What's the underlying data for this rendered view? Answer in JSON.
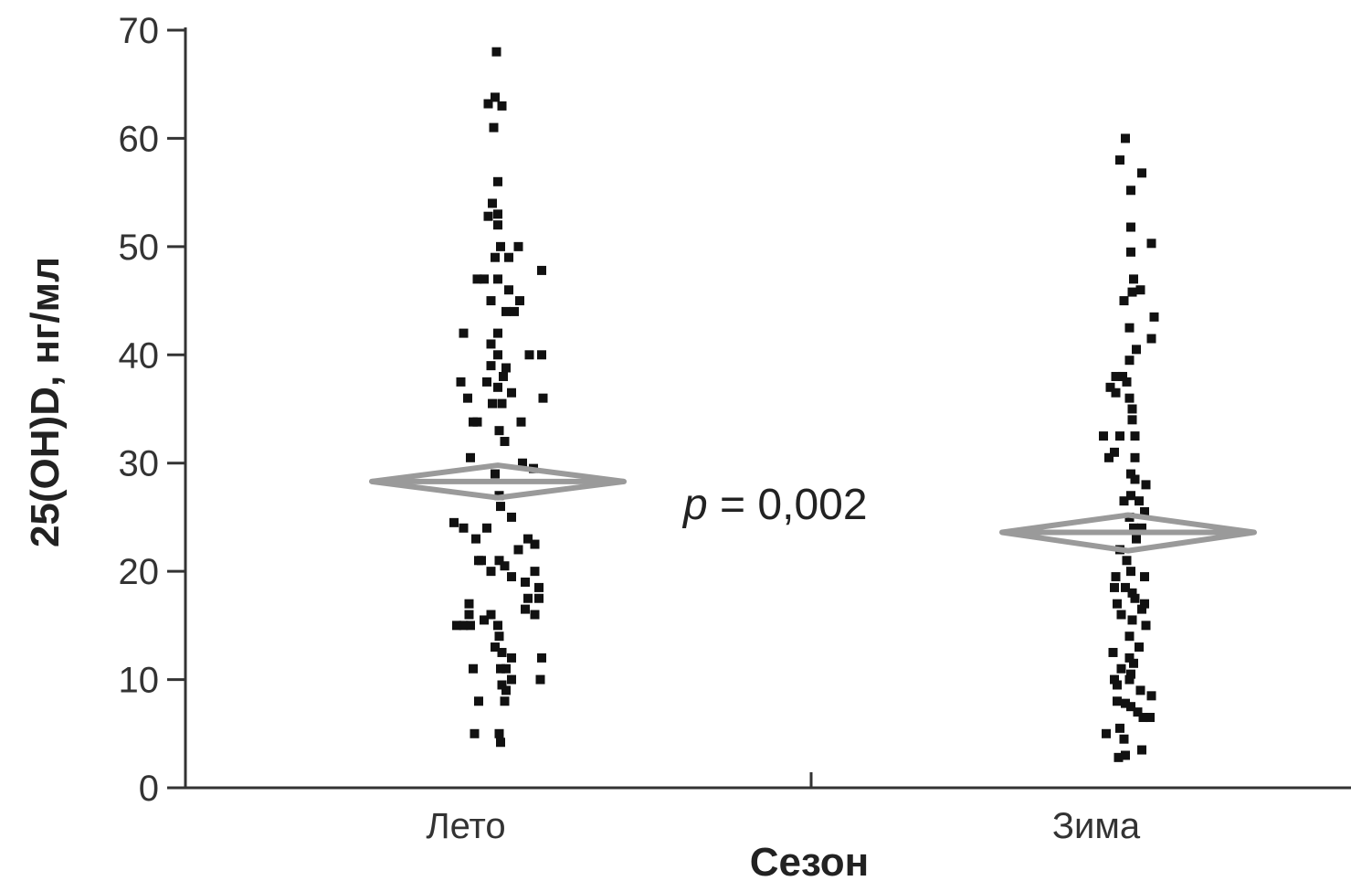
{
  "chart_data": {
    "type": "scatter",
    "xlabel": "Сезон",
    "ylabel": "25(OH)D, нг/мл",
    "categories": [
      "Лето",
      "Зима"
    ],
    "yticks": [
      "0",
      "10",
      "20",
      "30",
      "40",
      "50",
      "60",
      "70"
    ],
    "ylim": [
      0,
      70
    ],
    "grid": false,
    "annotation": {
      "prefix": "p",
      "text": " = 0,002"
    },
    "colors": {
      "points": "#111111",
      "diamond": "#9a9a9a",
      "axis": "#333333"
    },
    "summary": [
      {
        "category": "Лето",
        "mean": 28.3,
        "ci_low": 26.8,
        "ci_high": 29.8
      },
      {
        "category": "Зима",
        "mean": 23.6,
        "ci_low": 21.9,
        "ci_high": 25.2
      }
    ],
    "series": [
      {
        "category": "Лето",
        "points": [
          [
            -0.01,
            68
          ],
          [
            -0.07,
            63.2
          ],
          [
            -0.02,
            63.8
          ],
          [
            0.03,
            63
          ],
          [
            -0.03,
            61
          ],
          [
            0,
            56
          ],
          [
            -0.04,
            54
          ],
          [
            0,
            53
          ],
          [
            -0.07,
            52.8
          ],
          [
            0,
            52
          ],
          [
            0.02,
            50
          ],
          [
            0.15,
            50
          ],
          [
            -0.02,
            49
          ],
          [
            0.08,
            49
          ],
          [
            0.32,
            47.8
          ],
          [
            -0.15,
            47
          ],
          [
            -0.1,
            47
          ],
          [
            0,
            47
          ],
          [
            0.08,
            46
          ],
          [
            -0.05,
            45
          ],
          [
            0.16,
            45
          ],
          [
            0.12,
            44
          ],
          [
            0.06,
            44
          ],
          [
            0,
            42
          ],
          [
            -0.25,
            42
          ],
          [
            -0.05,
            41
          ],
          [
            0,
            40
          ],
          [
            0.23,
            40
          ],
          [
            0.32,
            40
          ],
          [
            -0.05,
            39
          ],
          [
            0.06,
            38.8
          ],
          [
            -0.27,
            37.5
          ],
          [
            0.04,
            38
          ],
          [
            -0.08,
            37.5
          ],
          [
            0,
            37
          ],
          [
            0.1,
            36.5
          ],
          [
            0.33,
            36
          ],
          [
            -0.22,
            36
          ],
          [
            -0.04,
            35.5
          ],
          [
            0.03,
            35.5
          ],
          [
            -0.15,
            33.8
          ],
          [
            -0.18,
            33.8
          ],
          [
            0.17,
            33.8
          ],
          [
            0.01,
            33
          ],
          [
            0.05,
            32
          ],
          [
            -0.2,
            30.5
          ],
          [
            0.18,
            30
          ],
          [
            0.26,
            29.5
          ],
          [
            -0.02,
            29
          ],
          [
            0.01,
            27
          ],
          [
            0.02,
            26
          ],
          [
            0.1,
            25
          ],
          [
            -0.32,
            24.5
          ],
          [
            -0.25,
            24
          ],
          [
            -0.08,
            24
          ],
          [
            -0.16,
            23
          ],
          [
            0.22,
            23
          ],
          [
            0.27,
            22.5
          ],
          [
            0.15,
            22
          ],
          [
            -0.12,
            21
          ],
          [
            -0.14,
            21
          ],
          [
            0.01,
            21
          ],
          [
            0.05,
            20.5
          ],
          [
            -0.05,
            20
          ],
          [
            0.27,
            20
          ],
          [
            0.1,
            19.5
          ],
          [
            0.2,
            19
          ],
          [
            0.3,
            18.5
          ],
          [
            0.3,
            17.5
          ],
          [
            0.22,
            17.5
          ],
          [
            -0.21,
            17
          ],
          [
            0.2,
            16.5
          ],
          [
            -0.05,
            16
          ],
          [
            0.27,
            16
          ],
          [
            -0.21,
            16
          ],
          [
            -0.1,
            15.5
          ],
          [
            -0.25,
            15
          ],
          [
            -0.3,
            15
          ],
          [
            -0.2,
            15
          ],
          [
            0,
            15
          ],
          [
            0.01,
            14
          ],
          [
            -0.02,
            13
          ],
          [
            0.03,
            12.5
          ],
          [
            0.1,
            12
          ],
          [
            0.32,
            12
          ],
          [
            -0.18,
            11
          ],
          [
            0.02,
            11
          ],
          [
            0.06,
            11
          ],
          [
            0.1,
            10
          ],
          [
            0.31,
            10
          ],
          [
            0.03,
            9.5
          ],
          [
            0.06,
            9
          ],
          [
            -0.14,
            8
          ],
          [
            0.05,
            8
          ],
          [
            -0.17,
            5
          ],
          [
            0.01,
            5
          ],
          [
            0.02,
            4.2
          ]
        ]
      },
      {
        "category": "Зима",
        "points": [
          [
            -0.02,
            60
          ],
          [
            -0.06,
            58
          ],
          [
            0.1,
            56.8
          ],
          [
            0.02,
            55.2
          ],
          [
            0.17,
            50.3
          ],
          [
            0.02,
            51.8
          ],
          [
            0.02,
            49.5
          ],
          [
            0.04,
            47
          ],
          [
            -0.03,
            45
          ],
          [
            0.03,
            45.8
          ],
          [
            0.09,
            46
          ],
          [
            0.19,
            43.5
          ],
          [
            0.17,
            41.5
          ],
          [
            0.01,
            42.5
          ],
          [
            0.06,
            40.5
          ],
          [
            0.01,
            39.5
          ],
          [
            -0.09,
            38
          ],
          [
            -0.04,
            38
          ],
          [
            -0.01,
            37.5
          ],
          [
            -0.13,
            37
          ],
          [
            -0.09,
            36.5
          ],
          [
            0.01,
            36
          ],
          [
            0.03,
            35
          ],
          [
            0.03,
            34
          ],
          [
            -0.18,
            32.5
          ],
          [
            -0.06,
            32.5
          ],
          [
            0.05,
            32.5
          ],
          [
            -0.1,
            31
          ],
          [
            0.05,
            30.5
          ],
          [
            -0.14,
            30.5
          ],
          [
            0.02,
            29
          ],
          [
            0.05,
            28.5
          ],
          [
            0.13,
            28
          ],
          [
            0.02,
            27
          ],
          [
            -0.03,
            26.5
          ],
          [
            0.08,
            26.5
          ],
          [
            0.12,
            25.5
          ],
          [
            0.01,
            25
          ],
          [
            0.04,
            24
          ],
          [
            0.1,
            24
          ],
          [
            0.06,
            23
          ],
          [
            -0.06,
            22
          ],
          [
            -0.01,
            21
          ],
          [
            0.02,
            20
          ],
          [
            -0.09,
            19.5
          ],
          [
            0.12,
            19.5
          ],
          [
            -0.02,
            18.5
          ],
          [
            0.03,
            18
          ],
          [
            -0.1,
            18.5
          ],
          [
            0.05,
            17.5
          ],
          [
            -0.08,
            17
          ],
          [
            0.12,
            17
          ],
          [
            0.1,
            16.5
          ],
          [
            -0.05,
            16
          ],
          [
            0.03,
            15.5
          ],
          [
            0.13,
            15
          ],
          [
            0.01,
            14
          ],
          [
            0.08,
            13
          ],
          [
            -0.11,
            12.5
          ],
          [
            0.01,
            12
          ],
          [
            0.04,
            11.5
          ],
          [
            -0.05,
            11
          ],
          [
            0.02,
            10.5
          ],
          [
            -0.1,
            10
          ],
          [
            0.01,
            10
          ],
          [
            -0.08,
            9.5
          ],
          [
            0.09,
            9
          ],
          [
            0.17,
            8.5
          ],
          [
            -0.08,
            8
          ],
          [
            -0.02,
            7.8
          ],
          [
            0.02,
            7.5
          ],
          [
            0.07,
            7
          ],
          [
            0.11,
            6.5
          ],
          [
            0.16,
            6.5
          ],
          [
            -0.06,
            5.5
          ],
          [
            -0.16,
            5
          ],
          [
            -0.03,
            4.5
          ],
          [
            0.1,
            3.5
          ],
          [
            -0.02,
            3
          ],
          [
            -0.07,
            2.8
          ]
        ]
      }
    ]
  }
}
